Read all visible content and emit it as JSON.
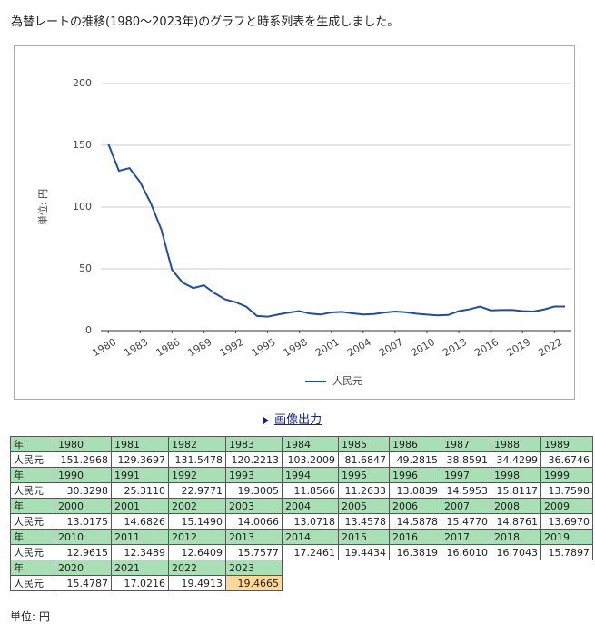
{
  "heading": "為替レートの推移(1980～2023年)のグラフと時系列表を生成しました。",
  "chart_data": {
    "type": "line",
    "y_label": "単位: 円",
    "x": [
      1980,
      1981,
      1982,
      1983,
      1984,
      1985,
      1986,
      1987,
      1988,
      1989,
      1990,
      1991,
      1992,
      1993,
      1994,
      1995,
      1996,
      1997,
      1998,
      1999,
      2000,
      2001,
      2002,
      2003,
      2004,
      2005,
      2006,
      2007,
      2008,
      2009,
      2010,
      2011,
      2012,
      2013,
      2014,
      2015,
      2016,
      2017,
      2018,
      2019,
      2020,
      2021,
      2022,
      2023
    ],
    "series": [
      {
        "name": "人民元",
        "color": "#1f4e9e",
        "values": [
          151.2968,
          129.3697,
          131.5478,
          120.2213,
          103.2009,
          81.6847,
          49.2815,
          38.8591,
          34.4299,
          36.6746,
          30.3298,
          25.311,
          22.9771,
          19.3005,
          11.8566,
          11.2633,
          13.0839,
          14.5953,
          15.8117,
          13.7598,
          13.0175,
          14.6826,
          15.149,
          14.0066,
          13.0718,
          13.4578,
          14.5878,
          15.477,
          14.8761,
          13.697,
          12.9615,
          12.3489,
          12.6409,
          15.7577,
          17.2461,
          19.4434,
          16.3819,
          16.601,
          16.7043,
          15.7897,
          15.4787,
          17.0216,
          19.4913,
          19.4665
        ]
      }
    ],
    "xlim": [
      1979.3,
      2023.6
    ],
    "xticks": [
      1980,
      1983,
      1986,
      1989,
      1992,
      1995,
      1998,
      2001,
      2004,
      2007,
      2010,
      2013,
      2016,
      2019,
      2022
    ],
    "ylim": [
      0,
      200
    ],
    "yticks": [
      0,
      50,
      100,
      150,
      200
    ],
    "grid": true,
    "legend": "bottom"
  },
  "image_output_link": "画像出力",
  "table": {
    "year_label": "年",
    "row_label": "人民元",
    "blocks": [
      {
        "years": [
          "1980",
          "1981",
          "1982",
          "1983",
          "1984",
          "1985",
          "1986",
          "1987",
          "1988",
          "1989"
        ],
        "values": [
          "151.2968",
          "129.3697",
          "131.5478",
          "120.2213",
          "103.2009",
          "81.6847",
          "49.2815",
          "38.8591",
          "34.4299",
          "36.6746"
        ]
      },
      {
        "years": [
          "1990",
          "1991",
          "1992",
          "1993",
          "1994",
          "1995",
          "1996",
          "1997",
          "1998",
          "1999"
        ],
        "values": [
          "30.3298",
          "25.3110",
          "22.9771",
          "19.3005",
          "11.8566",
          "11.2633",
          "13.0839",
          "14.5953",
          "15.8117",
          "13.7598"
        ]
      },
      {
        "years": [
          "2000",
          "2001",
          "2002",
          "2003",
          "2004",
          "2005",
          "2006",
          "2007",
          "2008",
          "2009"
        ],
        "values": [
          "13.0175",
          "14.6826",
          "15.1490",
          "14.0066",
          "13.0718",
          "13.4578",
          "14.5878",
          "15.4770",
          "14.8761",
          "13.6970"
        ]
      },
      {
        "years": [
          "2010",
          "2011",
          "2012",
          "2013",
          "2014",
          "2015",
          "2016",
          "2017",
          "2018",
          "2019"
        ],
        "values": [
          "12.9615",
          "12.3489",
          "12.6409",
          "15.7577",
          "17.2461",
          "19.4434",
          "16.3819",
          "16.6010",
          "16.7043",
          "15.7897"
        ]
      },
      {
        "years": [
          "2020",
          "2021",
          "2022",
          "2023"
        ],
        "values": [
          "15.4787",
          "17.0216",
          "19.4913",
          "19.4665"
        ]
      }
    ]
  },
  "unit_note": "単位: 円"
}
